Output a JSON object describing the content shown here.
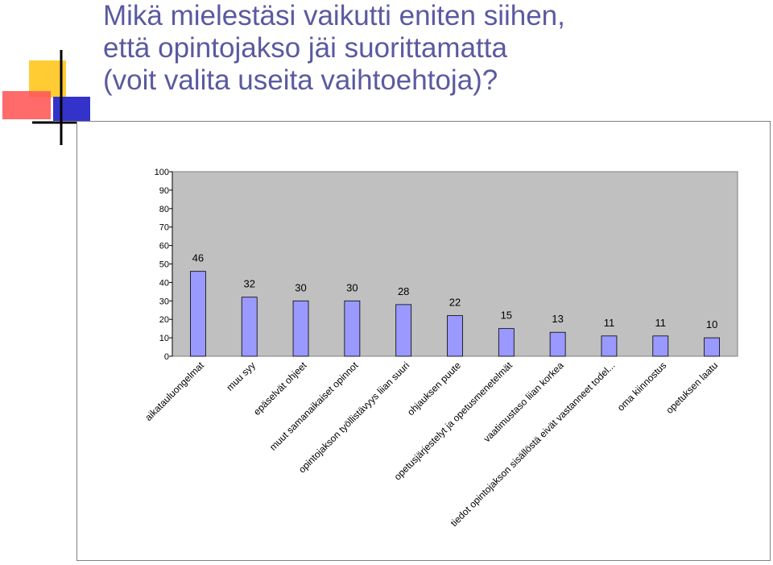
{
  "title_lines": [
    "Mikä mielestäsi vaikutti eniten siihen,",
    "että opintojakso jäi suorittamatta",
    "(voit valita useita vaihtoehtoja)?"
  ],
  "colors": {
    "title": "#5a5aa0",
    "plot_bg": "#c0c0c0",
    "bar_fill": "#9999ff",
    "bar_stroke": "#000000",
    "deco_yellow": "#ffcc33",
    "deco_red": "#ff5a5a",
    "deco_blue": "#3333cc"
  },
  "chart_data": {
    "type": "bar",
    "categories": [
      "aikatauluongelmat",
      "muu syy",
      "epäselvät ohjeet",
      "muut samanaikaiset opinnot",
      "opintojakson työllistävyys liian suuri",
      "ohjauksen puute",
      "opetusjärjestelyt ja opetusmenetelmät",
      "vaatimustaso liian korkea",
      "tiedot opintojakson sisällöstä eivät vastanneet todel...",
      "oma kiinnostus",
      "opetuksen laatu"
    ],
    "values": [
      46,
      32,
      30,
      30,
      28,
      22,
      15,
      13,
      11,
      11,
      10
    ],
    "data_labels": [
      "46",
      "32",
      "30",
      "30",
      "28",
      "22",
      "15",
      "13",
      "11",
      "11",
      "10"
    ],
    "yticks": [
      "0",
      "10",
      "20",
      "30",
      "40",
      "50",
      "60",
      "70",
      "80",
      "90",
      "100"
    ],
    "ylim": [
      0,
      100
    ],
    "grid": false,
    "legend": "none"
  }
}
